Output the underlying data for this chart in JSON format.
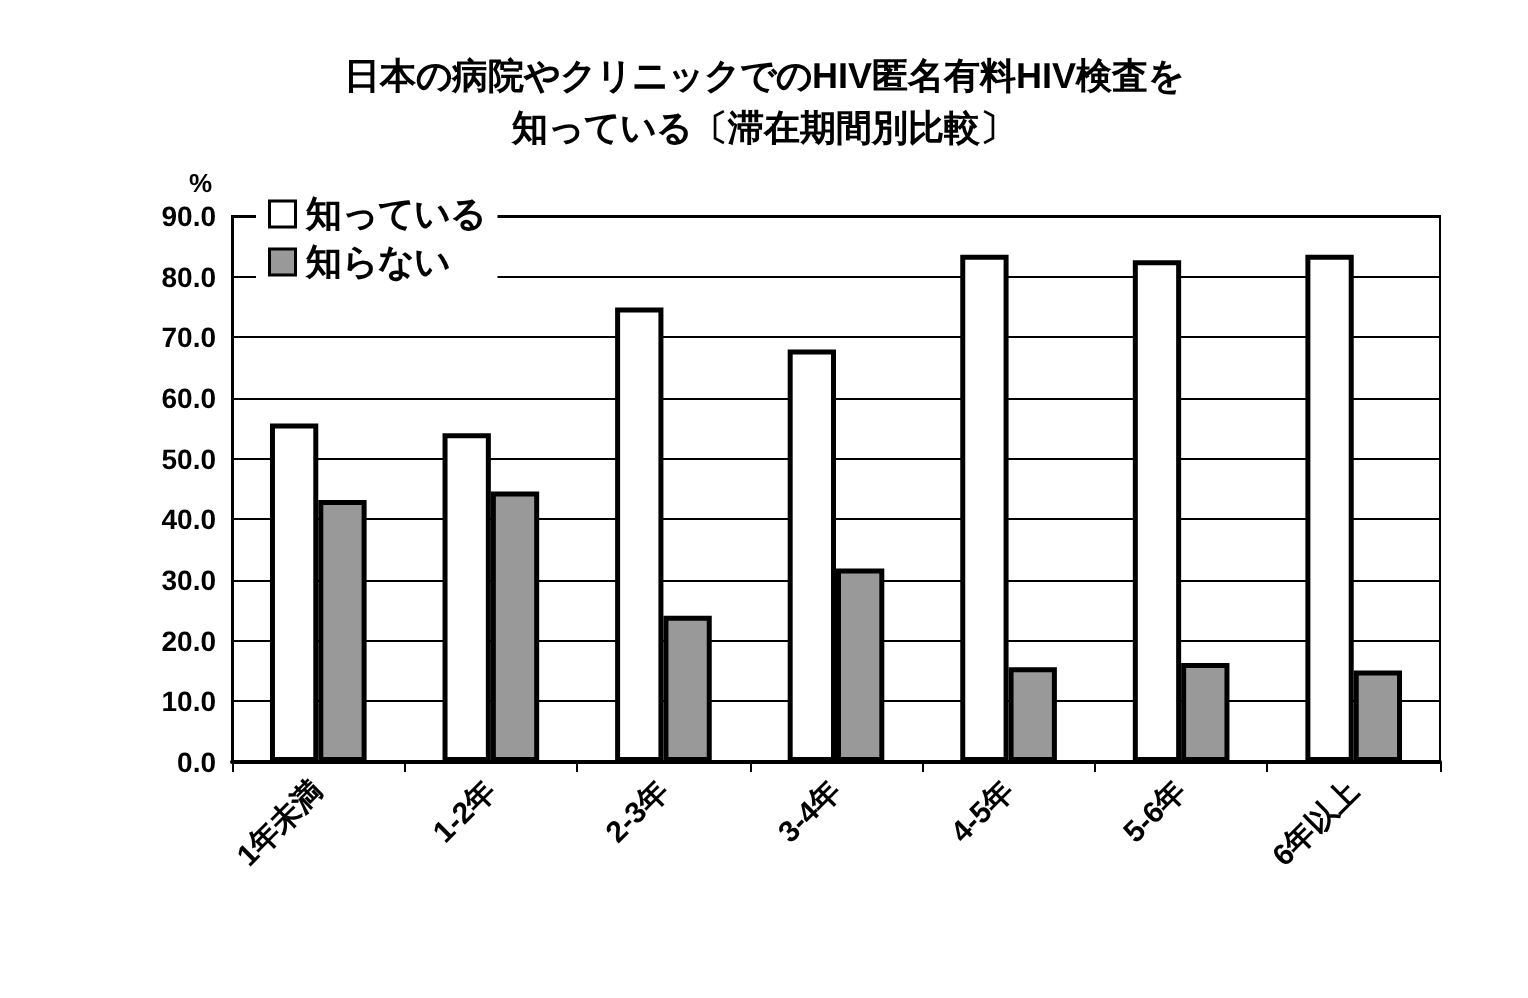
{
  "chart_data": {
    "type": "bar",
    "title": "日本の病院やクリニックでのHIV匿名有料HIV検査を知っている〔滞在期間別比較〕",
    "ylabel": "%",
    "categories": [
      "1年未満",
      "1-2年",
      "2-3年",
      "3-4年",
      "4-5年",
      "5-6年",
      "6年以上"
    ],
    "series": [
      {
        "name": "知っている",
        "color": "#ffffff",
        "values": [
          55.8,
          54.2,
          74.9,
          68.0,
          83.6,
          82.7,
          83.6
        ]
      },
      {
        "name": "知らない",
        "color": "#999999",
        "values": [
          43.2,
          44.6,
          24.1,
          31.9,
          15.6,
          16.3,
          15.1
        ]
      }
    ],
    "ylim": [
      0,
      90
    ],
    "yticks": [
      {
        "value": 0,
        "label": "0.0"
      },
      {
        "value": 10,
        "label": "10.0"
      },
      {
        "value": 20,
        "label": "20.0"
      },
      {
        "value": 30,
        "label": "30.0"
      },
      {
        "value": 40,
        "label": "40.0"
      },
      {
        "value": 50,
        "label": "50.0"
      },
      {
        "value": 60,
        "label": "60.0"
      },
      {
        "value": 70,
        "label": "70.0"
      },
      {
        "value": 80,
        "label": "80.0"
      },
      {
        "value": 90,
        "label": "90.0"
      }
    ],
    "grid": "y",
    "legend": "top left"
  }
}
